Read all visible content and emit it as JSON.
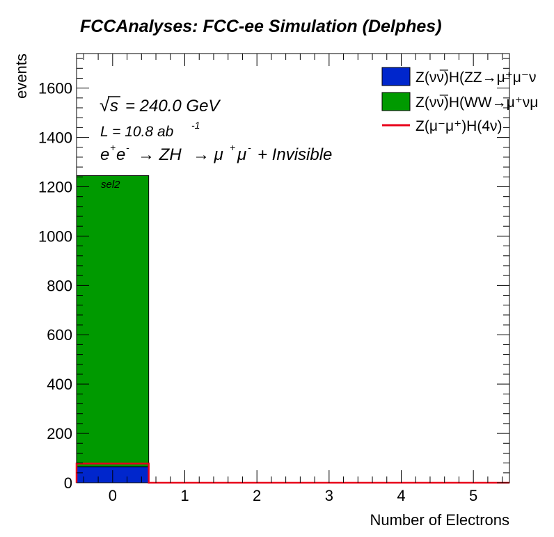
{
  "title": "FCCAnalyses: FCC-ee Simulation (Delphes)",
  "annotations": {
    "sqrt_s_symbol": "√",
    "sqrt_s_var": "s",
    "sqrt_s_value": "= 240.0 GeV",
    "lumi_label": "L = 10.8 ab",
    "lumi_exponent": "-1",
    "process_e1": "e",
    "process_e1_sup": "+",
    "process_e2": "e",
    "process_e2_sup": "-",
    "process_arrow1": "→ ZH",
    "process_arrow2": "→ μ",
    "process_mu_sup1": "+",
    "process_mu": "μ",
    "process_mu_sup2": "-",
    "process_rest": "+ Invisible",
    "selection": "sel2"
  },
  "colors": {
    "zz_fill": "#0026cc",
    "ww_fill": "#009a00",
    "signal_line": "#e8001a",
    "axis": "#000000",
    "background": "#ffffff"
  },
  "chart_data": {
    "type": "bar",
    "stacked": true,
    "title": "FCCAnalyses: FCC-ee Simulation (Delphes)",
    "xlabel": "Number of Electrons",
    "ylabel": "events",
    "xlim": [
      -0.5,
      5.5
    ],
    "ylim": [
      0,
      1740
    ],
    "x_ticks": [
      "0",
      "1",
      "2",
      "3",
      "4",
      "5"
    ],
    "y_ticks": [
      "0",
      "200",
      "400",
      "600",
      "800",
      "1000",
      "1200",
      "1400",
      "1600"
    ],
    "bin_centers": [
      0,
      1,
      2,
      3,
      4,
      5
    ],
    "series": [
      {
        "name": "Z(νν̅)H(ZZ→μ⁺μ⁻ν",
        "kind": "stacked-fill",
        "color": "#0026cc",
        "values": [
          65,
          0,
          0,
          0,
          0,
          0
        ]
      },
      {
        "name": "Z(νν̅)H(WW→μ⁺νμ",
        "kind": "stacked-fill",
        "color": "#009a00",
        "values": [
          1180,
          0,
          0,
          0,
          0,
          0
        ]
      },
      {
        "name": "Z(μ⁻μ⁺)H(4ν)",
        "kind": "step-line",
        "color": "#e8001a",
        "values": [
          78,
          0,
          0,
          0,
          0,
          0
        ]
      }
    ],
    "legend_position": "top-right",
    "grid": false
  }
}
